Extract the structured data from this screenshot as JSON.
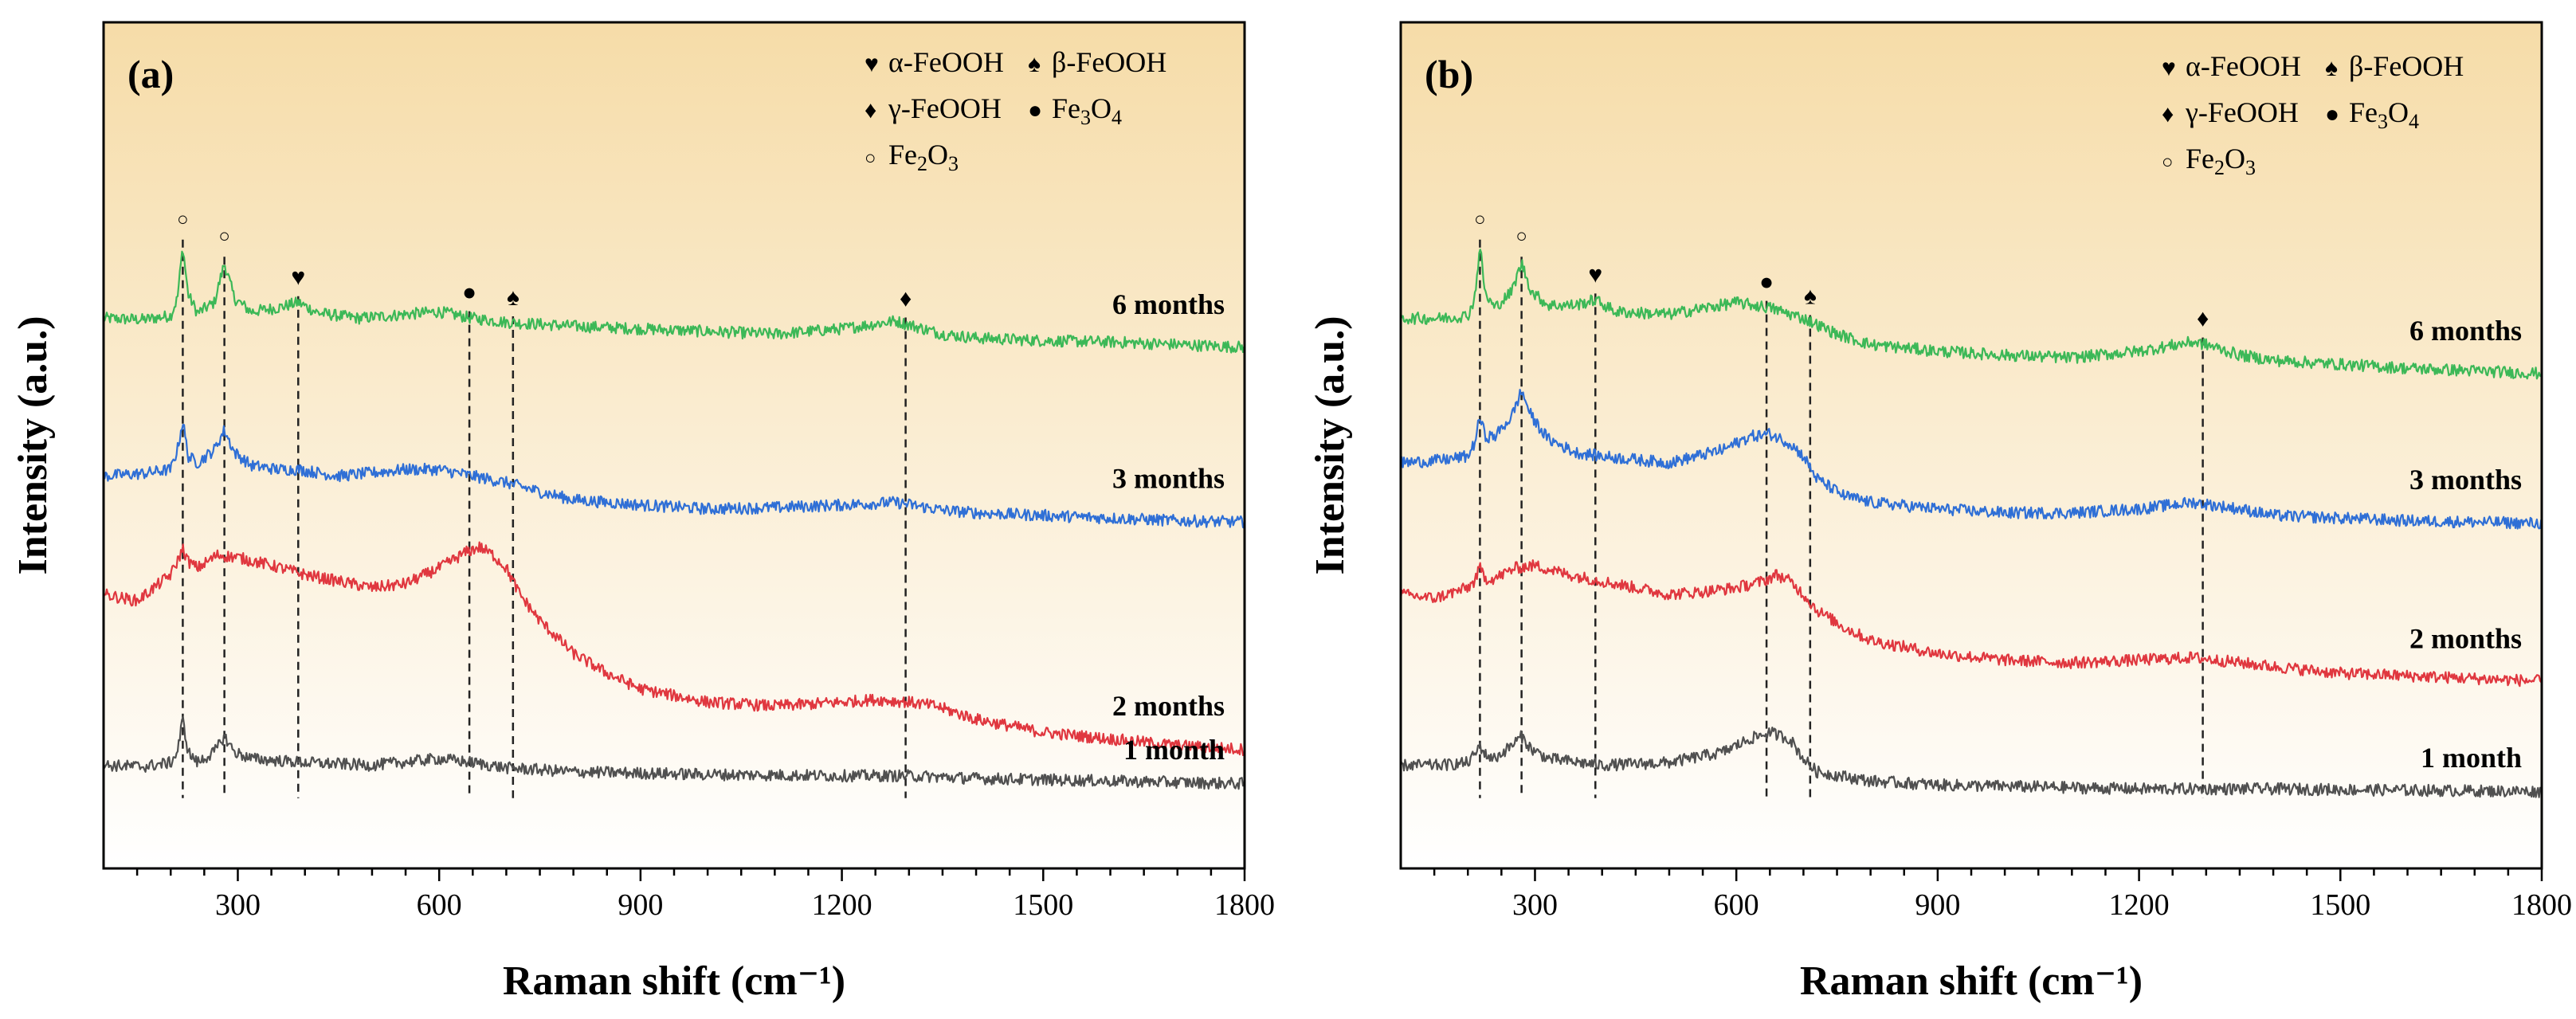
{
  "colors": {
    "bg_top": "#f6dca8",
    "bg_bottom": "#ffffff",
    "series": {
      "6 months": "#3cb857",
      "3 months": "#2f6fd6",
      "2 months": "#e0373f",
      "1 month": "#505050"
    },
    "axis": "#000000"
  },
  "chart_data": [
    {
      "type": "line",
      "panel_label": "(a)",
      "xlabel": "Raman shift (cm⁻¹)",
      "ylabel": "Intensity (a.u.)",
      "xlim": [
        100,
        1800
      ],
      "xticks": [
        "300",
        "600",
        "900",
        "1200",
        "1500",
        "1800"
      ],
      "legend": {
        "placement": "top-right",
        "entries": [
          {
            "symbol": "♥",
            "label": "α-FeOOH"
          },
          {
            "symbol": "♠",
            "label": "β-FeOOH"
          },
          {
            "symbol": "♦",
            "label": "γ-FeOOH"
          },
          {
            "symbol": "●",
            "label": "Fe3O4"
          },
          {
            "symbol": "○",
            "label": "Fe2O3"
          }
        ]
      },
      "reference_lines": [
        {
          "x": 218,
          "symbol": "○"
        },
        {
          "x": 280,
          "symbol": "○"
        },
        {
          "x": 390,
          "symbol": "♥"
        },
        {
          "x": 645,
          "symbol": "●"
        },
        {
          "x": 710,
          "symbol": "♠"
        },
        {
          "x": 1295,
          "symbol": "♦"
        }
      ],
      "series": [
        {
          "name": "6 months",
          "offset": 3.7,
          "x": [
            100,
            160,
            200,
            210,
            218,
            226,
            240,
            265,
            280,
            295,
            320,
            360,
            390,
            420,
            480,
            550,
            600,
            650,
            700,
            800,
            900,
            1000,
            1100,
            1200,
            1280,
            1300,
            1350,
            1400,
            1500,
            1600,
            1700,
            1800
          ],
          "values": [
            0.0,
            -0.01,
            0.02,
            0.15,
            0.55,
            0.18,
            0.04,
            0.12,
            0.42,
            0.15,
            0.05,
            0.08,
            0.12,
            0.04,
            0.0,
            0.03,
            0.05,
            0.0,
            -0.03,
            -0.06,
            -0.08,
            -0.1,
            -0.12,
            -0.08,
            -0.02,
            -0.05,
            -0.12,
            -0.15,
            -0.17,
            -0.18,
            -0.2,
            -0.22
          ]
        },
        {
          "name": "3 months",
          "offset": 2.5,
          "x": [
            100,
            160,
            200,
            210,
            218,
            226,
            240,
            265,
            280,
            295,
            320,
            360,
            390,
            450,
            550,
            600,
            650,
            700,
            750,
            800,
            900,
            1000,
            1100,
            1200,
            1280,
            1350,
            1400,
            1500,
            1600,
            1700,
            1800
          ],
          "values": [
            0.0,
            0.02,
            0.05,
            0.2,
            0.42,
            0.15,
            0.1,
            0.2,
            0.35,
            0.18,
            0.08,
            0.05,
            0.05,
            0.0,
            0.05,
            0.05,
            0.0,
            -0.05,
            -0.12,
            -0.18,
            -0.22,
            -0.25,
            -0.24,
            -0.22,
            -0.2,
            -0.26,
            -0.28,
            -0.3,
            -0.32,
            -0.34,
            -0.35
          ]
        },
        {
          "name": "2 months",
          "offset": 1.6,
          "x": [
            100,
            150,
            200,
            210,
            218,
            226,
            240,
            270,
            300,
            350,
            400,
            450,
            500,
            550,
            600,
            640,
            660,
            680,
            700,
            720,
            750,
            800,
            850,
            900,
            1000,
            1100,
            1200,
            1250,
            1300,
            1340,
            1400,
            1450,
            1500,
            1600,
            1700,
            1800
          ],
          "values": [
            0.0,
            -0.05,
            0.15,
            0.25,
            0.35,
            0.25,
            0.2,
            0.3,
            0.28,
            0.22,
            0.15,
            0.1,
            0.05,
            0.08,
            0.2,
            0.32,
            0.36,
            0.3,
            0.2,
            0.0,
            -0.2,
            -0.45,
            -0.6,
            -0.72,
            -0.82,
            -0.85,
            -0.82,
            -0.8,
            -0.82,
            -0.85,
            -0.95,
            -1.0,
            -1.05,
            -1.1,
            -1.15,
            -1.18
          ]
        },
        {
          "name": "1 month",
          "offset": 0.3,
          "x": [
            100,
            160,
            200,
            210,
            218,
            226,
            240,
            265,
            280,
            295,
            320,
            400,
            500,
            600,
            650,
            700,
            800,
            900,
            1000,
            1200,
            1300,
            1400,
            1600,
            1800
          ],
          "values": [
            0.0,
            -0.01,
            0.02,
            0.1,
            0.35,
            0.1,
            0.02,
            0.1,
            0.22,
            0.1,
            0.05,
            0.02,
            0.0,
            0.05,
            0.02,
            -0.02,
            -0.05,
            -0.06,
            -0.07,
            -0.08,
            -0.08,
            -0.1,
            -0.12,
            -0.14
          ]
        }
      ]
    },
    {
      "type": "line",
      "panel_label": "(b)",
      "xlabel": "Raman shift (cm⁻¹)",
      "ylabel": "Intensity (a.u.)",
      "xlim": [
        100,
        1800
      ],
      "xticks": [
        "300",
        "600",
        "900",
        "1200",
        "1500",
        "1800"
      ],
      "legend": {
        "placement": "top-right",
        "entries": [
          {
            "symbol": "♥",
            "label": "α-FeOOH"
          },
          {
            "symbol": "♠",
            "label": "β-FeOOH"
          },
          {
            "symbol": "♦",
            "label": "γ-FeOOH"
          },
          {
            "symbol": "●",
            "label": "Fe3O4"
          },
          {
            "symbol": "○",
            "label": "Fe2O3"
          }
        ]
      },
      "reference_lines": [
        {
          "x": 218,
          "symbol": "○"
        },
        {
          "x": 280,
          "symbol": "○"
        },
        {
          "x": 390,
          "symbol": "♥"
        },
        {
          "x": 645,
          "symbol": "●"
        },
        {
          "x": 710,
          "symbol": "♠"
        },
        {
          "x": 1295,
          "symbol": "♦"
        }
      ],
      "series": [
        {
          "name": "6 months",
          "offset": 3.7,
          "x": [
            100,
            160,
            200,
            210,
            218,
            226,
            240,
            265,
            280,
            295,
            320,
            360,
            390,
            420,
            500,
            600,
            650,
            700,
            750,
            800,
            900,
            1000,
            1100,
            1200,
            1280,
            1300,
            1350,
            1400,
            1500,
            1600,
            1700,
            1800
          ],
          "values": [
            0.0,
            0.0,
            0.02,
            0.15,
            0.55,
            0.18,
            0.08,
            0.2,
            0.42,
            0.2,
            0.1,
            0.1,
            0.14,
            0.05,
            0.03,
            0.12,
            0.08,
            0.0,
            -0.12,
            -0.2,
            -0.25,
            -0.28,
            -0.3,
            -0.25,
            -0.18,
            -0.2,
            -0.28,
            -0.32,
            -0.35,
            -0.38,
            -0.4,
            -0.42
          ]
        },
        {
          "name": "3 months",
          "offset": 2.6,
          "x": [
            100,
            160,
            200,
            210,
            218,
            226,
            240,
            265,
            280,
            295,
            320,
            360,
            400,
            500,
            580,
            620,
            650,
            680,
            700,
            720,
            760,
            800,
            900,
            1000,
            1100,
            1200,
            1280,
            1350,
            1400,
            1500,
            1600,
            1700,
            1800
          ],
          "values": [
            0.0,
            0.02,
            0.05,
            0.15,
            0.35,
            0.2,
            0.2,
            0.35,
            0.55,
            0.35,
            0.18,
            0.08,
            0.05,
            0.0,
            0.1,
            0.2,
            0.22,
            0.15,
            0.05,
            -0.12,
            -0.25,
            -0.3,
            -0.35,
            -0.38,
            -0.38,
            -0.35,
            -0.3,
            -0.35,
            -0.4,
            -0.42,
            -0.44,
            -0.45,
            -0.46
          ]
        },
        {
          "name": "2 months",
          "offset": 1.6,
          "x": [
            100,
            150,
            200,
            210,
            218,
            226,
            240,
            270,
            300,
            350,
            400,
            450,
            500,
            550,
            600,
            640,
            660,
            680,
            700,
            720,
            760,
            800,
            850,
            900,
            1000,
            1100,
            1200,
            1280,
            1350,
            1400,
            1500,
            1600,
            1700,
            1800
          ],
          "values": [
            0.0,
            -0.03,
            0.05,
            0.1,
            0.2,
            0.12,
            0.12,
            0.2,
            0.22,
            0.15,
            0.1,
            0.05,
            0.0,
            0.02,
            0.05,
            0.1,
            0.15,
            0.1,
            0.0,
            -0.12,
            -0.25,
            -0.35,
            -0.4,
            -0.45,
            -0.5,
            -0.52,
            -0.5,
            -0.48,
            -0.52,
            -0.55,
            -0.6,
            -0.62,
            -0.64,
            -0.66
          ]
        },
        {
          "name": "1 month",
          "offset": 0.3,
          "x": [
            100,
            160,
            200,
            210,
            218,
            226,
            240,
            265,
            280,
            295,
            320,
            400,
            500,
            580,
            620,
            650,
            680,
            700,
            720,
            800,
            900,
            1000,
            1200,
            1400,
            1600,
            1800
          ],
          "values": [
            0.0,
            0.0,
            0.02,
            0.08,
            0.15,
            0.08,
            0.05,
            0.15,
            0.22,
            0.12,
            0.05,
            0.0,
            0.02,
            0.1,
            0.2,
            0.25,
            0.2,
            0.05,
            -0.05,
            -0.12,
            -0.15,
            -0.16,
            -0.18,
            -0.18,
            -0.19,
            -0.2
          ]
        }
      ]
    }
  ]
}
